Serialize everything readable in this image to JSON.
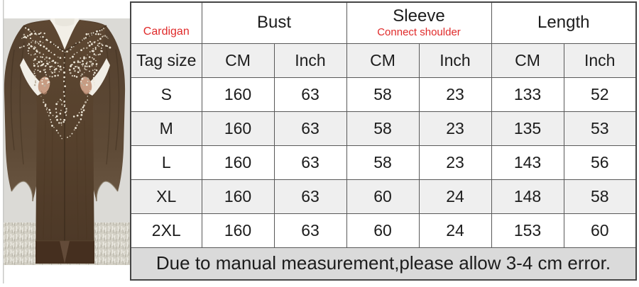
{
  "photo": {
    "subject": "model-wearing-brown-beaded-cardigan",
    "garment_color": "#58432f",
    "background_color": "#dbdad6"
  },
  "chart_data": {
    "type": "table",
    "product_label": "Cardigan",
    "corner_header": "Tag size",
    "column_groups": [
      {
        "label": "Bust",
        "sublabel": ""
      },
      {
        "label": "Sleeve",
        "sublabel": "Connect shoulder"
      },
      {
        "label": "Length",
        "sublabel": ""
      }
    ],
    "unit_headers": [
      "CM",
      "Inch",
      "CM",
      "Inch",
      "CM",
      "Inch"
    ],
    "rows": [
      {
        "size": "S",
        "values": [
          "160",
          "63",
          "58",
          "23",
          "133",
          "52"
        ]
      },
      {
        "size": "M",
        "values": [
          "160",
          "63",
          "58",
          "23",
          "135",
          "53"
        ]
      },
      {
        "size": "L",
        "values": [
          "160",
          "63",
          "58",
          "23",
          "143",
          "56"
        ]
      },
      {
        "size": "XL",
        "values": [
          "160",
          "63",
          "60",
          "24",
          "148",
          "58"
        ]
      },
      {
        "size": "2XL",
        "values": [
          "160",
          "63",
          "60",
          "24",
          "153",
          "60"
        ]
      }
    ],
    "footnote": "Due to manual measurement,please allow 3-4 cm error."
  },
  "colors": {
    "accent_red": "#e02a2a",
    "row_alt_gray": "#efefef",
    "note_bar_gray": "#dadada",
    "grid_border": "#595959"
  }
}
